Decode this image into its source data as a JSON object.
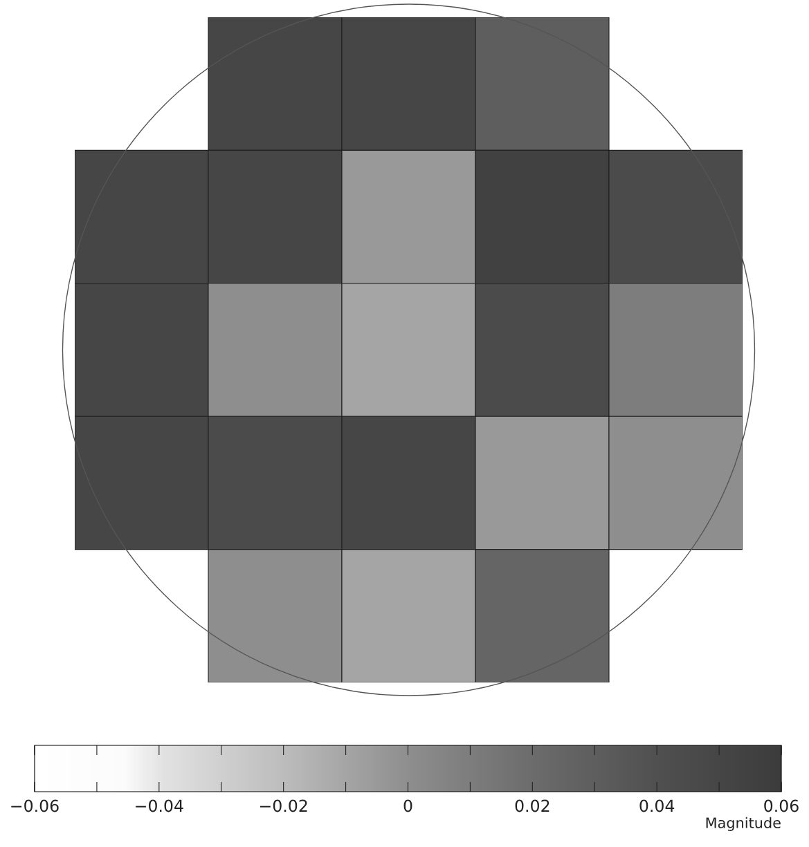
{
  "chart_data": {
    "type": "heatmap",
    "categories": [
      null,
      null,
      null,
      null,
      null
    ],
    "y_categories": [
      null,
      null,
      null,
      null,
      null
    ],
    "cells": [
      [
        null,
        0.05,
        0.05,
        0.03,
        null
      ],
      [
        0.05,
        0.05,
        -0.005,
        0.055,
        0.045
      ],
      [
        0.05,
        0.0,
        -0.01,
        0.045,
        0.01
      ],
      [
        0.05,
        0.045,
        0.05,
        -0.005,
        0.0
      ],
      [
        null,
        0.0,
        -0.01,
        0.025,
        null
      ]
    ],
    "clim": [
      -0.06,
      0.06
    ],
    "cticks": [
      {
        "value": -0.06,
        "label": "−0.06"
      },
      {
        "value": -0.05,
        "label": null
      },
      {
        "value": -0.04,
        "label": "−0.04"
      },
      {
        "value": -0.03,
        "label": null
      },
      {
        "value": -0.02,
        "label": "−0.02"
      },
      {
        "value": -0.01,
        "label": null
      },
      0,
      {
        "value": 0.01,
        "label": null
      },
      0.02,
      {
        "value": 0.03,
        "label": null
      },
      0.04,
      {
        "value": 0.05,
        "label": null
      },
      0.06
    ],
    "clabel": "Magnitude"
  }
}
